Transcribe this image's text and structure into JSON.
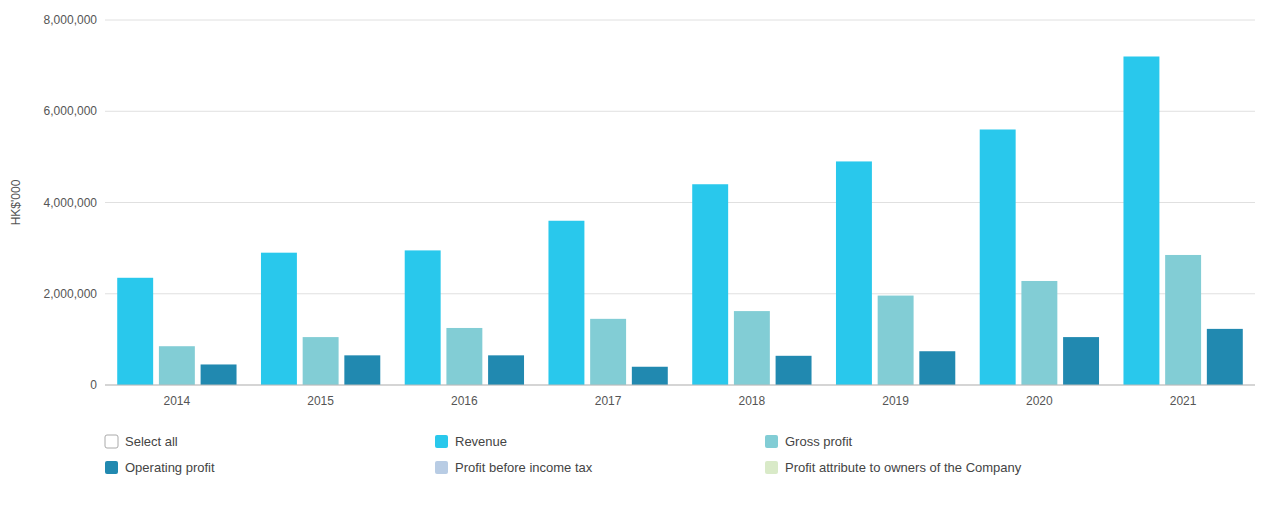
{
  "chart_data": {
    "type": "bar",
    "categories": [
      "2014",
      "2015",
      "2016",
      "2017",
      "2018",
      "2019",
      "2020",
      "2021"
    ],
    "series": [
      {
        "name": "Select all",
        "color": "#ffffff",
        "values": [
          null,
          null,
          null,
          null,
          null,
          null,
          null,
          null
        ]
      },
      {
        "name": "Revenue",
        "color": "#29c8ec",
        "values": [
          2350000,
          2900000,
          2950000,
          3600000,
          4400000,
          4900000,
          5600000,
          7200000
        ]
      },
      {
        "name": "Gross profit",
        "color": "#82cdd5",
        "values": [
          850000,
          1050000,
          1250000,
          1450000,
          1620000,
          1960000,
          2280000,
          2850000
        ]
      },
      {
        "name": "Operating profit",
        "color": "#2189b0",
        "values": [
          450000,
          650000,
          650000,
          400000,
          640000,
          740000,
          1050000,
          1230000
        ]
      },
      {
        "name": "Profit before income tax",
        "color": "#b8cce4",
        "values": [
          null,
          null,
          null,
          null,
          null,
          null,
          null,
          null
        ]
      },
      {
        "name": "Profit attribute to owners of the Company",
        "color": "#d9eac8",
        "values": [
          null,
          null,
          null,
          null,
          null,
          null,
          null,
          null
        ]
      }
    ],
    "ylabel": "HK$'000",
    "ylim": [
      0,
      8000000
    ],
    "yticks": [
      0,
      {
        "value": 2000000,
        "label": "2,000,000"
      },
      {
        "value": 4000000,
        "label": "4,000,000"
      },
      {
        "value": 6000000,
        "label": "6,000,000"
      },
      {
        "value": 8000000,
        "label": "8,000,000"
      }
    ],
    "grid": true,
    "legend": "bottom"
  }
}
